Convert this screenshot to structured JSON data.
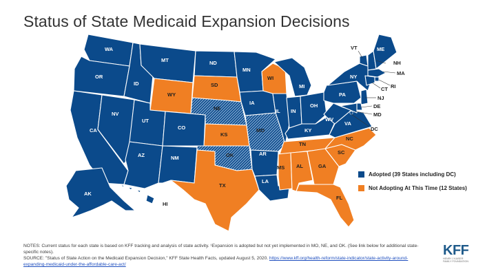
{
  "title": "Status of State Medicaid Expansion Decisions",
  "colors": {
    "adopted": "#0b4a8b",
    "not_adopting": "#f07f23",
    "hatch": "#7fa6cf",
    "border": "#ffffff"
  },
  "legend": {
    "adopted": "Adopted (39 States including DC)",
    "not_adopting": "Not Adopting At This Time (12 States)"
  },
  "states": {
    "WA": "WA",
    "OR": "OR",
    "CA": "CA",
    "NV": "NV",
    "ID": "ID",
    "MT": "MT",
    "WY": "WY",
    "UT": "UT",
    "AZ": "AZ",
    "CO": "CO",
    "NM": "NM",
    "ND": "ND",
    "SD": "SD",
    "NE": "NE",
    "KS": "KS",
    "OK": "OK",
    "TX": "TX",
    "MN": "MN",
    "IA": "IA",
    "MO": "MO",
    "AR": "AR",
    "LA": "LA",
    "WI": "WI",
    "IL": "IL",
    "MI": "MI",
    "IN": "IN",
    "OH": "OH",
    "KY": "KY",
    "TN": "TN",
    "MS": "MS",
    "AL": "AL",
    "GA": "GA",
    "FL": "FL",
    "SC": "SC",
    "NC": "NC",
    "VA": "VA",
    "WV": "WV",
    "PA": "PA",
    "NY": "NY",
    "VT": "VT",
    "NH": "NH",
    "ME": "ME",
    "MA": "MA",
    "RI": "RI",
    "CT": "CT",
    "NJ": "NJ",
    "DE": "DE",
    "MD": "MD",
    "DC": "DC",
    "AK": "AK",
    "HI": "HI"
  },
  "notes": "NOTES: Current status for each state is based on KFF tracking and analysis of state activity. ¹Expansion is adopted but not yet implemented in MO, NE, and OK. (See link below for additional state-specific notes).",
  "source_prefix": "SOURCE: \"Status of State Action on the Medicaid Expansion Decision,\" KFF State Health Facts, updated August 5, 2020.",
  "source_link": "https://www.kff.org/health-reform/state-indicator/state-activity-around-expanding-medicaid-under-the-affordable-care-act/",
  "logo": {
    "mark": "KFF",
    "subtitle": "HENRY J KAISER FAMILY FOUNDATION"
  }
}
